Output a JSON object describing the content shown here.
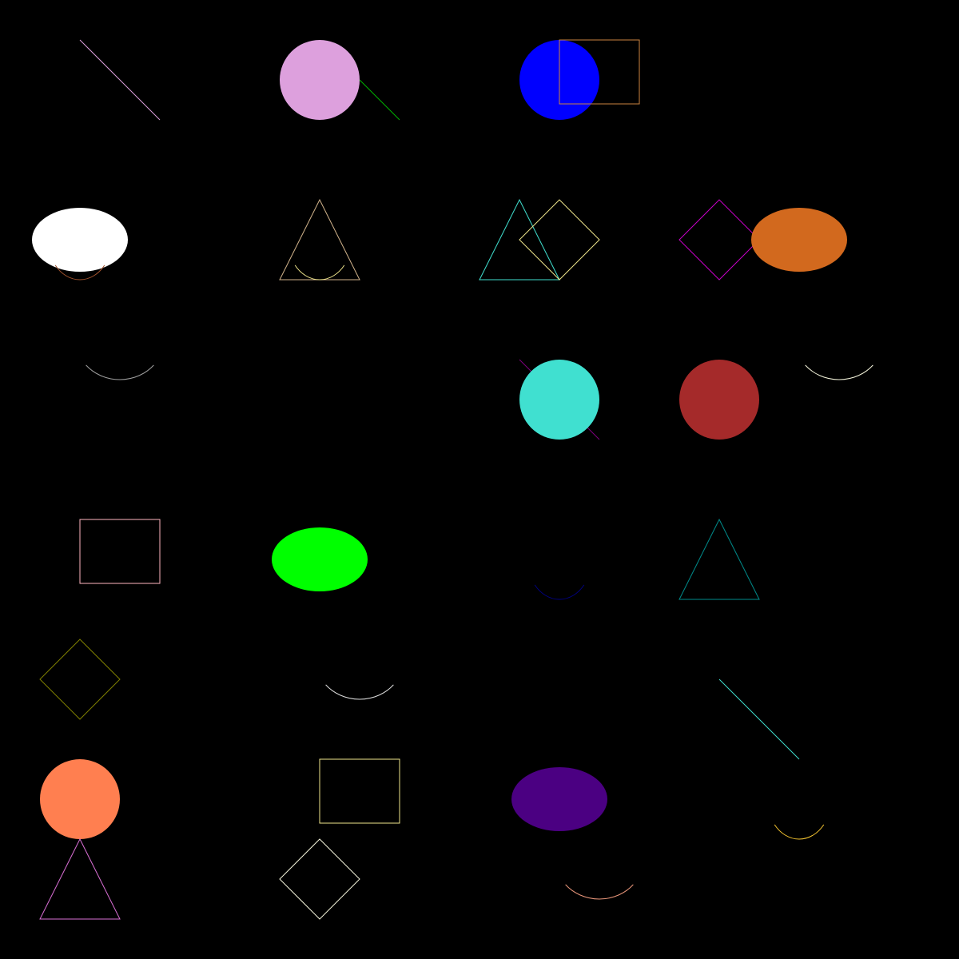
{
  "background": "#000000",
  "shapes": [
    {
      "name": "line",
      "color": "#dda0dd",
      "filled": false
    },
    {
      "name": "circle",
      "color": "#dda0dd",
      "filled": true
    },
    {
      "name": "line",
      "color": "#00b400",
      "filled": false
    },
    {
      "name": "circle",
      "color": "#0000ff",
      "filled": true
    },
    {
      "name": "rectangle",
      "color": "#cd853f",
      "filled": false
    },
    {
      "name": "ellipse",
      "color": "#ffffff",
      "filled": true
    },
    {
      "name": "arc",
      "color": "#a0522d",
      "filled": false
    },
    {
      "name": "triangle",
      "color": "#d2b48c",
      "filled": false
    },
    {
      "name": "arc",
      "color": "#f0e68c",
      "filled": false
    },
    {
      "name": "triangle",
      "color": "#40e0d0",
      "filled": false
    },
    {
      "name": "diamond",
      "color": "#f0e68c",
      "filled": false
    },
    {
      "name": "diamond",
      "color": "#c800c8",
      "filled": false
    },
    {
      "name": "ellipse",
      "color": "#d2691e",
      "filled": true
    },
    {
      "name": "arc",
      "color": "#a0a0a0",
      "filled": false
    },
    {
      "name": "line",
      "color": "#800080",
      "filled": false
    },
    {
      "name": "circle",
      "color": "#40e0d0",
      "filled": true
    },
    {
      "name": "circle",
      "color": "#a52a2a",
      "filled": true
    },
    {
      "name": "arc",
      "color": "#f5f5dc",
      "filled": false
    },
    {
      "name": "rectangle",
      "color": "#ffb6c1",
      "filled": false
    },
    {
      "name": "ellipse",
      "color": "#00ff00",
      "filled": true
    },
    {
      "name": "arc",
      "color": "#000080",
      "filled": false
    },
    {
      "name": "triangle",
      "color": "#008b8b",
      "filled": false
    },
    {
      "name": "diamond",
      "color": "#808000",
      "filled": false
    },
    {
      "name": "arc",
      "color": "#dcdcdc",
      "filled": false
    },
    {
      "name": "line",
      "color": "#40e0d0",
      "filled": false
    },
    {
      "name": "circle",
      "color": "#ff7f50",
      "filled": true
    },
    {
      "name": "rectangle",
      "color": "#f0e68c",
      "filled": false
    },
    {
      "name": "ellipse",
      "color": "#4b0082",
      "filled": true
    },
    {
      "name": "arc",
      "color": "#f4c430",
      "filled": false
    },
    {
      "name": "triangle",
      "color": "#da70d6",
      "filled": false
    },
    {
      "name": "diamond",
      "color": "#f5f5dc",
      "filled": false
    },
    {
      "name": "arc",
      "color": "#e9967a",
      "filled": false
    }
  ]
}
